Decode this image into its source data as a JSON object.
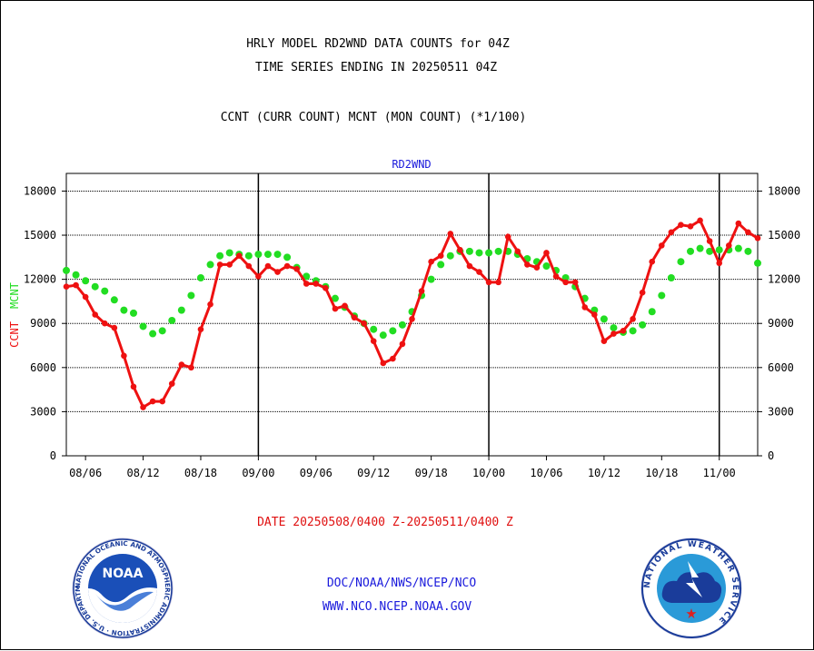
{
  "header": {
    "title_line1": "HRLY MODEL RD2WND DATA COUNTS for 04Z",
    "title_line2": "TIME SERIES ENDING IN 20250511 04Z",
    "subtitle": "CCNT (CURR COUNT) MCNT (MON COUNT) (*1/100)"
  },
  "footer": {
    "date_range": "DATE 20250508/0400 Z-20250511/0400 Z",
    "link1": "DOC/NOAA/NWS/NCEP/NCO",
    "link2": "WWW.NCO.NCEP.NOAA.GOV"
  },
  "logos": {
    "noaa": {
      "text": "NOAA",
      "ring_text": "NATIONAL OCEANIC AND ATMOSPHERIC ADMINISTRATION · U.S. DEPARTMENT OF COMMERCE",
      "icon": "noaa-logo-icon"
    },
    "nws": {
      "ring_text": "NATIONAL WEATHER SERVICE",
      "icon": "nws-logo-icon"
    }
  },
  "chart_data": {
    "type": "line",
    "title": "RD2WND",
    "ylabel_ccnt": "CCNT",
    "ylabel_mcnt": "MCNT",
    "ylim": [
      0,
      19200
    ],
    "yticks": [
      0,
      3000,
      6000,
      9000,
      12000,
      15000,
      18000
    ],
    "ytick_labels": [
      "0",
      "3000",
      "6000",
      "9000",
      "12000",
      "15000",
      "18000"
    ],
    "xlim": [
      4,
      76
    ],
    "xticks": [
      6,
      12,
      18,
      24,
      30,
      36,
      42,
      48,
      54,
      60,
      66,
      72
    ],
    "xtick_labels": [
      "08/06",
      "08/12",
      "08/18",
      "09/00",
      "09/06",
      "09/12",
      "09/18",
      "10/00",
      "10/06",
      "10/12",
      "10/18",
      "11/00"
    ],
    "day_dividers": [
      24,
      48,
      72
    ],
    "grid": true,
    "series": [
      {
        "name": "CCNT",
        "color": "#ee1111",
        "style": "line-with-points",
        "x": [
          4,
          5,
          6,
          7,
          8,
          9,
          10,
          11,
          12,
          13,
          14,
          15,
          16,
          17,
          18,
          19,
          20,
          21,
          22,
          23,
          24,
          25,
          26,
          27,
          28,
          29,
          30,
          31,
          32,
          33,
          34,
          35,
          36,
          37,
          38,
          39,
          40,
          41,
          42,
          43,
          44,
          45,
          46,
          47,
          48,
          49,
          50,
          51,
          52,
          53,
          54,
          55,
          56,
          57,
          58,
          59,
          60,
          61,
          62,
          63,
          64,
          65,
          66,
          67,
          68,
          69,
          70,
          71,
          72,
          73,
          74,
          75,
          76
        ],
        "values": [
          11500,
          11600,
          10800,
          9600,
          9000,
          8700,
          6800,
          4700,
          3300,
          3700,
          3700,
          4900,
          6200,
          6000,
          8600,
          10300,
          13000,
          13000,
          13600,
          12900,
          12200,
          12900,
          12500,
          12900,
          12700,
          11700,
          11700,
          11400,
          10000,
          10200,
          9400,
          9000,
          7800,
          6300,
          6600,
          7600,
          9300,
          11200,
          13200,
          13600,
          15100,
          14000,
          12900,
          12500,
          11800,
          11800,
          14900,
          13900,
          13000,
          12800,
          13800,
          12200,
          11800,
          11800,
          10100,
          9600,
          7800,
          8300,
          8500,
          9300,
          11100,
          13200,
          14300,
          15200,
          15700,
          15600,
          16000,
          14600,
          13100,
          14300,
          15800,
          15200,
          14800
        ]
      },
      {
        "name": "MCNT",
        "color": "#22dd22",
        "style": "points",
        "x": [
          4,
          5,
          6,
          7,
          8,
          9,
          10,
          11,
          12,
          13,
          14,
          15,
          16,
          17,
          18,
          19,
          20,
          21,
          22,
          23,
          24,
          25,
          26,
          27,
          28,
          29,
          30,
          31,
          32,
          33,
          34,
          35,
          36,
          37,
          38,
          39,
          40,
          41,
          42,
          43,
          44,
          45,
          46,
          47,
          48,
          49,
          50,
          51,
          52,
          53,
          54,
          55,
          56,
          57,
          58,
          59,
          60,
          61,
          62,
          63,
          64,
          65,
          66,
          67,
          68,
          69,
          70,
          71,
          72,
          73,
          74,
          75,
          76
        ],
        "values": [
          12600,
          12300,
          11900,
          11500,
          11200,
          10600,
          9900,
          9700,
          8800,
          8300,
          8500,
          9200,
          9900,
          10900,
          12100,
          13000,
          13600,
          13800,
          13700,
          13600,
          13700,
          13700,
          13700,
          13500,
          12800,
          12200,
          11900,
          11500,
          10700,
          10100,
          9500,
          9000,
          8600,
          8200,
          8500,
          8900,
          9800,
          10900,
          12000,
          13000,
          13600,
          13900,
          13900,
          13800,
          13800,
          13900,
          13900,
          13700,
          13400,
          13200,
          12900,
          12600,
          12100,
          11500,
          10700,
          9900,
          9300,
          8700,
          8400,
          8500,
          8900,
          9800,
          10900,
          12100,
          13200,
          13900,
          14100,
          13900,
          14000,
          14000,
          14100,
          13900,
          13100
        ]
      }
    ]
  }
}
